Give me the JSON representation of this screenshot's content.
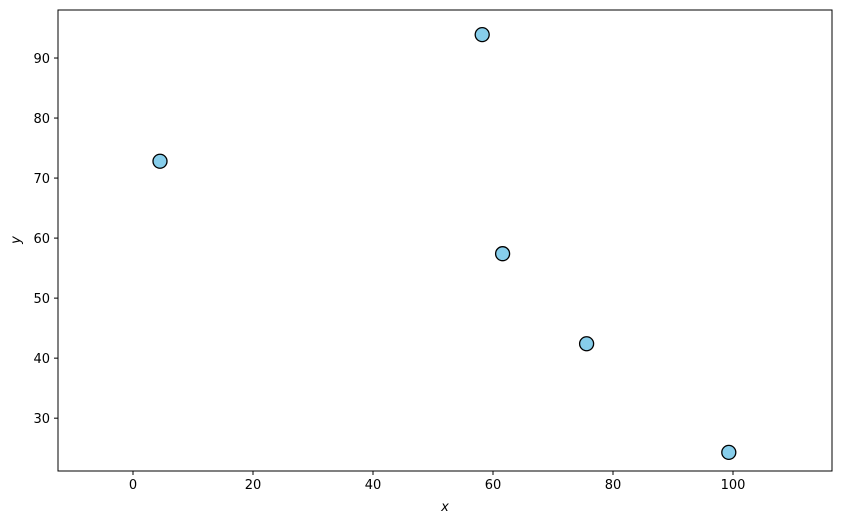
{
  "chart_data": {
    "type": "scatter",
    "x_label": "x",
    "y_label": "y",
    "x": [
      4.5,
      58.2,
      61.6,
      75.6,
      99.3
    ],
    "values": [
      72.8,
      93.9,
      57.4,
      42.4,
      24.3
    ],
    "color": "#87ceeb",
    "edge_color": "#000000",
    "xlim": [
      -12.5,
      116.5
    ],
    "ylim": [
      21.2,
      98
    ],
    "xticks": [
      0,
      20,
      40,
      60,
      80,
      100
    ],
    "yticks": [
      30,
      40,
      50,
      60,
      70,
      80,
      90
    ],
    "grid": false
  }
}
